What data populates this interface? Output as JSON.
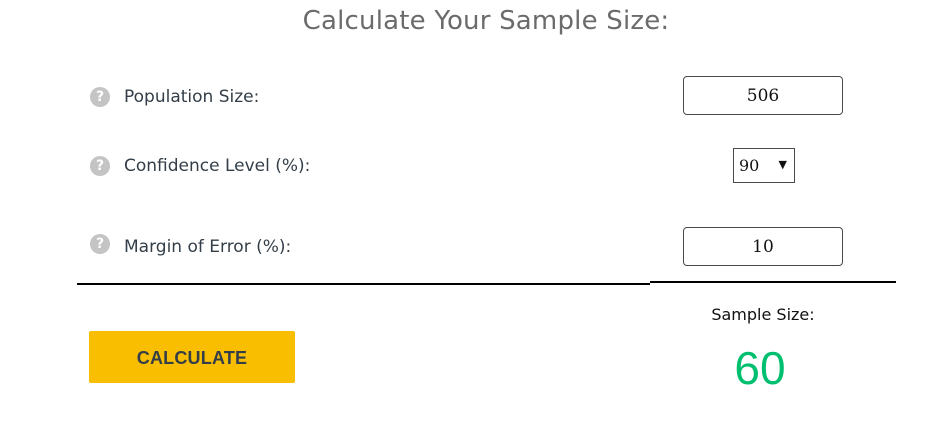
{
  "title": "Calculate Your Sample Size:",
  "fields": {
    "population": {
      "label": "Population Size:",
      "value": "506",
      "help_icon": "question-circle-icon"
    },
    "confidence": {
      "label": "Confidence Level (%):",
      "selected": "90",
      "help_icon": "question-circle-icon"
    },
    "margin": {
      "label": "Margin of Error (%):",
      "value": "10",
      "help_icon": "question-circle-icon"
    }
  },
  "calculate_label": "CALCULATE",
  "result": {
    "label": "Sample Size:",
    "value": "60"
  },
  "colors": {
    "accent_button": "#f9be00",
    "result_green": "#00bf6f",
    "title_gray": "#6b6b6b",
    "help_icon_gray": "#c4c4c4"
  },
  "icons": {
    "help": "?",
    "dropdown_arrow": "▼"
  }
}
